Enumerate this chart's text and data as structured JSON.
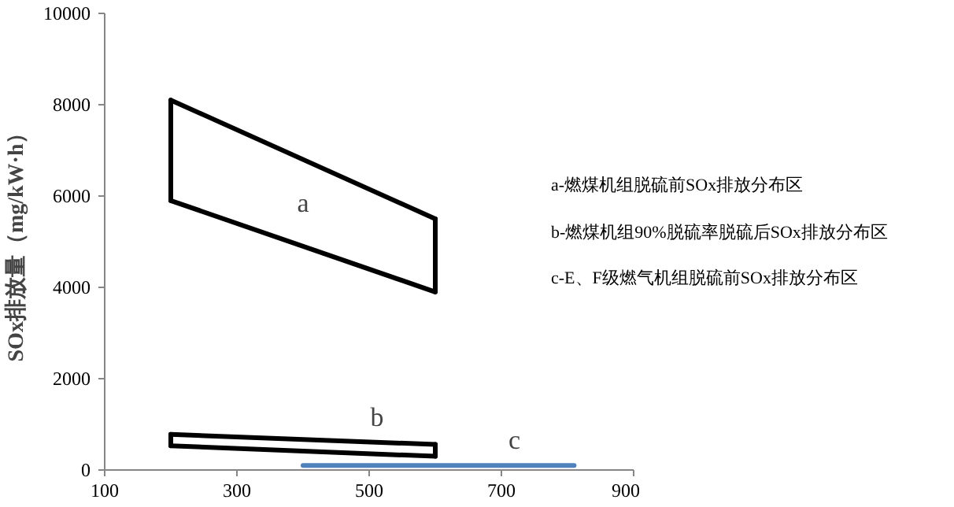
{
  "chart_data": {
    "type": "line",
    "ylabel": "SOx排放量（mg/kW·h）",
    "xlim": [
      100,
      900
    ],
    "ylim": [
      0,
      10000
    ],
    "xticks": [
      100,
      300,
      500,
      700,
      900
    ],
    "yticks": [
      0,
      2000,
      4000,
      6000,
      8000,
      10000
    ],
    "grid": false,
    "marker": "none",
    "line_style": "solid",
    "series": [
      {
        "name": "a",
        "color": "#000000",
        "x": [
          200,
          600
        ],
        "values": [
          8100,
          5500
        ]
      },
      {
        "color": "#000000",
        "x": [
          200,
          600
        ],
        "values": [
          5900,
          3900
        ],
        "errors": [
          [
            5900,
            8100
          ],
          [
            3900,
            5500
          ]
        ]
      },
      {
        "name": "b",
        "color": "#000000",
        "x": [
          200,
          600
        ],
        "values": [
          780,
          560
        ]
      },
      {
        "color": "#000000",
        "x": [
          200,
          600
        ],
        "values": [
          530,
          300
        ],
        "errors": [
          [
            530,
            780
          ],
          [
            300,
            560
          ]
        ]
      },
      {
        "name": "c",
        "color": "#4f81bd",
        "x": [
          400,
          810
        ],
        "values": [
          100,
          100
        ]
      }
    ],
    "annotations": [
      "a-燃煤机组脱硫前SOx排放分布区",
      "b-燃煤机组90%脱硫率脱硫后SOx排放分布区",
      "c-E、F级燃气机组脱硫前SOx排放分布区"
    ]
  }
}
